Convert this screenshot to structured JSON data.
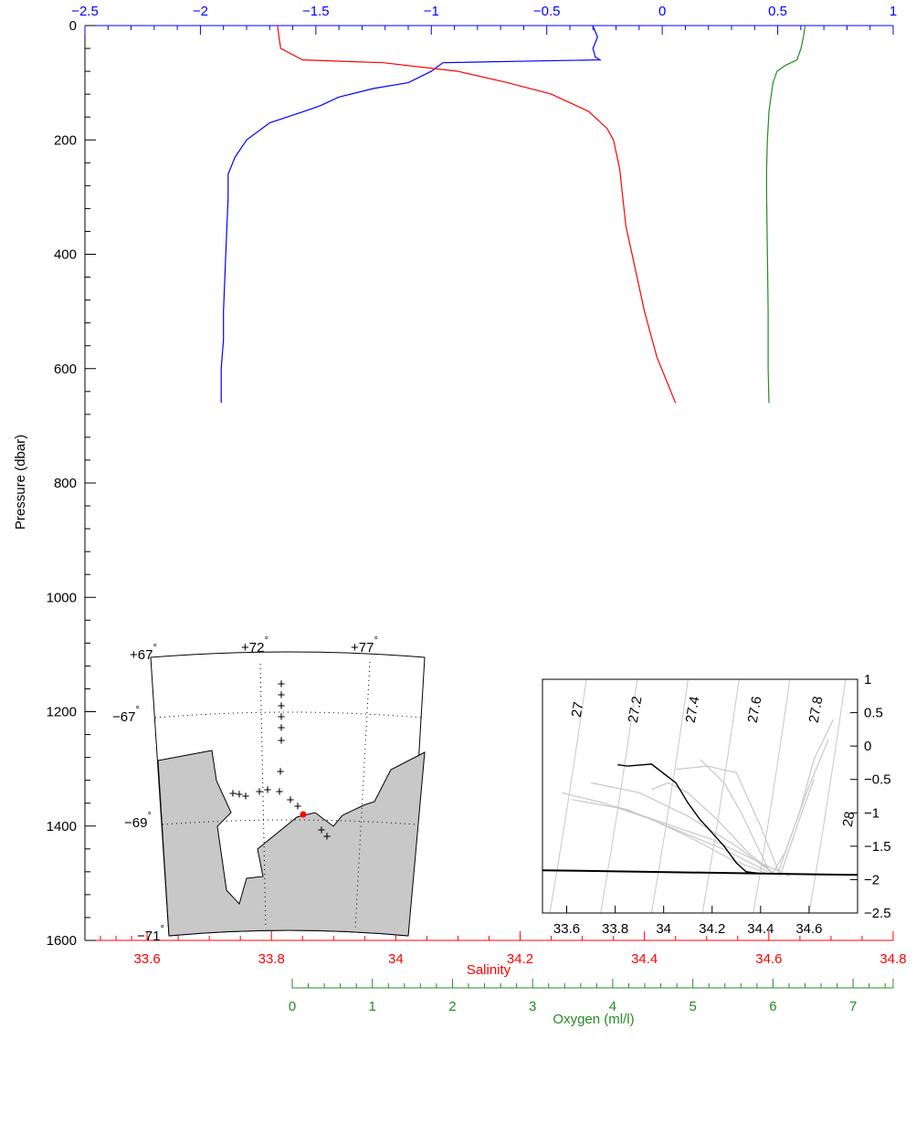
{
  "chart_data": [
    {
      "type": "line",
      "ylabel": "Pressure (dbar)",
      "ylim": [
        1600,
        0
      ],
      "yticks": [
        0,
        200,
        400,
        600,
        800,
        1000,
        1200,
        1400,
        1600
      ],
      "axes": {
        "temperature": {
          "position": "top",
          "color": "#0000ff",
          "label": "",
          "lim": [
            -2.5,
            1
          ],
          "ticks": [
            -2.5,
            -2,
            -1.5,
            -1,
            -0.5,
            0,
            0.5,
            1
          ],
          "tick_labels": [
            "−2.5",
            "−2",
            "−1.5",
            "−1",
            "−0.5",
            "0",
            "0.5",
            "1"
          ]
        },
        "salinity": {
          "position": "bottom",
          "color": "#ff0000",
          "label": "Salinity",
          "lim": [
            33.5,
            34.8
          ],
          "ticks": [
            33.6,
            33.8,
            34,
            34.2,
            34.4,
            34.6,
            34.8
          ],
          "tick_labels": [
            "33.6",
            "33.8",
            "34",
            "34.2",
            "34.4",
            "34.6",
            "34.8"
          ]
        },
        "oxygen": {
          "position": "bottom-2",
          "color": "#228b22",
          "label": "Oxygen (ml/l)",
          "lim": [
            0,
            7.5
          ],
          "ticks": [
            0,
            1,
            2,
            3,
            4,
            5,
            6,
            7
          ],
          "tick_labels": [
            "0",
            "1",
            "2",
            "3",
            "4",
            "5",
            "6",
            "7"
          ]
        }
      },
      "series": [
        {
          "axis": "temperature",
          "color": "#0000ff",
          "x": [
            -0.3,
            -0.28,
            -0.3,
            -0.29,
            -0.27,
            -0.55,
            -0.95,
            -1.0,
            -1.1,
            -1.25,
            -1.4,
            -1.48,
            -1.55,
            -1.7,
            -1.8,
            -1.85,
            -1.88,
            -1.88,
            -1.89,
            -1.9,
            -1.9,
            -1.91,
            -1.91
          ],
          "y": [
            1,
            20,
            40,
            55,
            60,
            62,
            65,
            80,
            100,
            110,
            125,
            140,
            150,
            170,
            200,
            230,
            260,
            300,
            400,
            500,
            550,
            600,
            660
          ]
        },
        {
          "axis": "salinity",
          "color": "#ff0000",
          "x": [
            33.81,
            33.812,
            33.815,
            33.85,
            33.98,
            34.1,
            34.18,
            34.25,
            34.31,
            34.34,
            34.35,
            34.36,
            34.365,
            34.37,
            34.38,
            34.39,
            34.4,
            34.42,
            34.45
          ],
          "y": [
            1,
            20,
            40,
            60,
            65,
            80,
            100,
            120,
            150,
            180,
            200,
            250,
            300,
            350,
            400,
            450,
            500,
            580,
            660
          ]
        },
        {
          "axis": "oxygen",
          "color": "#228b22",
          "x": [
            6.4,
            6.38,
            6.35,
            6.3,
            6.15,
            6.05,
            6.0,
            5.95,
            5.93,
            5.92,
            5.92,
            5.93,
            5.94,
            5.94,
            5.95
          ],
          "y": [
            1,
            20,
            40,
            60,
            70,
            80,
            100,
            150,
            200,
            250,
            300,
            400,
            500,
            600,
            660
          ]
        }
      ]
    },
    {
      "type": "line",
      "xlim": [
        33.5,
        34.8
      ],
      "ylim": [
        -2.5,
        1
      ],
      "xticks": [
        33.6,
        33.8,
        34,
        34.2,
        34.4,
        34.6
      ],
      "yticks": [
        1,
        0.5,
        0,
        -0.5,
        -1,
        -1.5,
        -2,
        -2.5
      ],
      "xtick_labels": [
        "33.6",
        "33.8",
        "34",
        "34.2",
        "34.4",
        "34.6"
      ],
      "ytick_labels": [
        "1",
        "0.5",
        "0",
        "−0.5",
        "−1",
        "−1.5",
        "−2",
        "−2.5"
      ],
      "density_contour_labels": [
        "27",
        "27.2",
        "27.4",
        "27.6",
        "27.8",
        "28"
      ],
      "density_contour_salinity_at_bottom": [
        33.53,
        33.74,
        33.95,
        34.16,
        34.37,
        34.6
      ],
      "freezing_line": {
        "x": [
          33.5,
          34.8
        ],
        "y": [
          -1.86,
          -1.93
        ]
      },
      "highlight_profile": {
        "color": "#000000",
        "x": [
          33.81,
          33.85,
          33.95,
          34.05,
          34.1,
          34.15,
          34.2,
          34.25,
          34.3,
          34.34,
          34.36,
          34.38,
          34.4
        ],
        "y": [
          -0.28,
          -0.3,
          -0.27,
          -0.55,
          -0.85,
          -1.1,
          -1.3,
          -1.5,
          -1.75,
          -1.88,
          -1.89,
          -1.9,
          -1.91
        ]
      },
      "background_profiles": [
        {
          "x": [
            33.58,
            33.75,
            33.95,
            34.1,
            34.28,
            34.42
          ],
          "y": [
            -0.7,
            -0.85,
            -1.1,
            -1.35,
            -1.7,
            -1.9
          ]
        },
        {
          "x": [
            33.62,
            33.85,
            34.05,
            34.25,
            34.43
          ],
          "y": [
            -0.8,
            -0.95,
            -1.25,
            -1.55,
            -1.88
          ]
        },
        {
          "x": [
            33.7,
            33.9,
            34.1,
            34.3,
            34.45
          ],
          "y": [
            -0.55,
            -0.7,
            -1.05,
            -1.5,
            -1.9
          ]
        },
        {
          "x": [
            33.95,
            34.02,
            34.1,
            34.22,
            34.35,
            34.46
          ],
          "y": [
            -0.65,
            -0.55,
            -0.7,
            -1.1,
            -1.6,
            -1.92
          ]
        },
        {
          "x": [
            34.15,
            34.25,
            34.32,
            34.38,
            34.44
          ],
          "y": [
            -0.2,
            -0.55,
            -1.0,
            -1.45,
            -1.9
          ]
        },
        {
          "x": [
            34.05,
            34.18,
            34.3,
            34.4,
            34.48
          ],
          "y": [
            -0.35,
            -0.3,
            -0.4,
            -1.2,
            -1.93
          ]
        },
        {
          "x": [
            34.45,
            34.5,
            34.56,
            34.62,
            34.7
          ],
          "y": [
            -1.9,
            -1.6,
            -1.0,
            -0.2,
            0.4
          ]
        },
        {
          "x": [
            34.47,
            34.52,
            34.6,
            34.68
          ],
          "y": [
            -1.92,
            -1.4,
            -0.6,
            0.1
          ]
        },
        {
          "x": [
            34.48,
            34.55,
            34.62
          ],
          "y": [
            -1.95,
            -1.2,
            -0.5
          ]
        },
        {
          "x": [
            33.8,
            34.0,
            34.2,
            34.4,
            34.52
          ],
          "y": [
            -0.9,
            -1.15,
            -1.4,
            -1.75,
            -1.95
          ]
        }
      ]
    }
  ],
  "map_data": {
    "lat_labels": [
      "−67",
      "−69",
      "−71"
    ],
    "lon_labels": [
      "+67",
      "+72",
      "+77"
    ],
    "degree_symbol": "°",
    "land_color": "#c8c8c8",
    "station_marker": "+",
    "current_station_color": "#ff0000"
  }
}
